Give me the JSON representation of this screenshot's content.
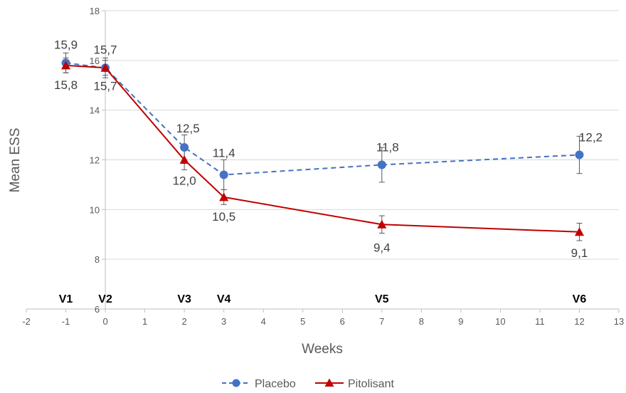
{
  "chart_data": {
    "type": "line",
    "title": "",
    "xlabel": "Weeks",
    "ylabel": "Mean ESS",
    "xlim": [
      -2,
      13
    ],
    "ylim": [
      6,
      18
    ],
    "x_ticks": [
      -2,
      -1,
      0,
      1,
      2,
      3,
      4,
      5,
      6,
      7,
      8,
      9,
      10,
      11,
      12,
      13
    ],
    "y_ticks": [
      6,
      8,
      10,
      12,
      14,
      16,
      18
    ],
    "grid": "horizontal",
    "legend_position": "bottom",
    "x": [
      -1,
      0,
      2,
      3,
      7,
      12
    ],
    "visit_labels": [
      "V1",
      "V2",
      "V3",
      "V4",
      "V5",
      "V6"
    ],
    "series": [
      {
        "name": "Placebo",
        "values": [
          15.9,
          15.7,
          12.5,
          11.4,
          11.8,
          12.2
        ],
        "labels": [
          "15,9",
          "15,7",
          "12,5",
          "11,4",
          "11,8",
          "12,2"
        ],
        "error_low": [
          15.5,
          15.3,
          12.0,
          10.8,
          11.1,
          11.45
        ],
        "error_high": [
          16.3,
          16.1,
          13.0,
          12.0,
          12.5,
          12.95
        ],
        "color": "#4472C4",
        "line_style": "dashed",
        "marker": "circle"
      },
      {
        "name": "Pitolisant",
        "values": [
          15.8,
          15.7,
          12.0,
          10.5,
          9.4,
          9.1
        ],
        "labels": [
          "15,8",
          "15,7",
          "12,0",
          "10,5",
          "9,4",
          "9,1"
        ],
        "error_low": [
          15.5,
          15.4,
          11.6,
          10.2,
          9.05,
          8.75
        ],
        "error_high": [
          16.1,
          16.0,
          12.4,
          10.8,
          9.75,
          9.45
        ],
        "color": "#C00000",
        "line_style": "solid",
        "marker": "triangle"
      }
    ]
  }
}
